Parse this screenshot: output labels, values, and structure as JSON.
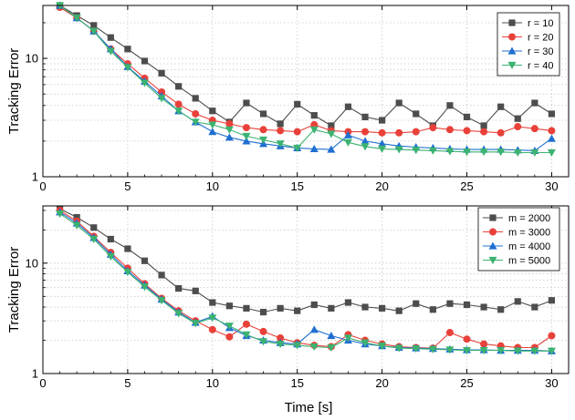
{
  "chart_data": [
    {
      "type": "line",
      "title": "",
      "ylabel": "Tracking Error",
      "xlabel": "",
      "yscale": "log",
      "xlim": [
        0,
        31
      ],
      "ylim": [
        1,
        28
      ],
      "xticks": [
        "0",
        "5",
        "10",
        "15",
        "20",
        "25",
        "30"
      ],
      "yticks": [
        "1",
        "10"
      ],
      "grid": "dotted",
      "legend_position": "top-right",
      "x": [
        1,
        2,
        3,
        4,
        5,
        6,
        7,
        8,
        9,
        10,
        11,
        12,
        13,
        14,
        15,
        16,
        17,
        18,
        19,
        20,
        21,
        22,
        23,
        24,
        25,
        26,
        27,
        28,
        29,
        30
      ],
      "series": [
        {
          "name": "r = 10",
          "color": "#4d4d4d",
          "marker": "square",
          "values": [
            28,
            23,
            19,
            15,
            12,
            9.5,
            7.5,
            5.8,
            4.6,
            3.6,
            2.9,
            4.2,
            3.4,
            2.8,
            4.1,
            3.3,
            2.7,
            3.9,
            3.2,
            3.0,
            4.2,
            3.4,
            2.7,
            4.0,
            3.2,
            2.7,
            3.9,
            3.1,
            4.2,
            3.4
          ]
        },
        {
          "name": "r = 20",
          "color": "#e8413a",
          "marker": "circle",
          "values": [
            27,
            22,
            17,
            12,
            9.0,
            6.8,
            5.2,
            4.1,
            3.4,
            3.0,
            2.8,
            2.6,
            2.5,
            2.45,
            2.4,
            2.75,
            2.45,
            2.4,
            2.4,
            2.35,
            2.35,
            2.4,
            2.6,
            2.5,
            2.45,
            2.4,
            2.35,
            2.65,
            2.55,
            2.45
          ]
        },
        {
          "name": "r = 30",
          "color": "#1f6fd1",
          "marker": "triangle-up",
          "values": [
            28,
            22,
            17,
            12,
            8.5,
            6.4,
            4.8,
            3.6,
            2.9,
            2.4,
            2.15,
            2.0,
            1.9,
            1.82,
            1.75,
            1.72,
            1.7,
            2.25,
            2.0,
            1.9,
            1.82,
            1.78,
            1.75,
            1.72,
            1.7,
            1.7,
            1.7,
            1.68,
            1.66,
            2.1
          ]
        },
        {
          "name": "r = 40",
          "color": "#3cb371",
          "marker": "triangle-down",
          "values": [
            28,
            22,
            17,
            11.5,
            8.4,
            6.2,
            4.6,
            3.6,
            2.9,
            2.75,
            2.5,
            2.2,
            2.05,
            1.9,
            1.75,
            2.5,
            2.3,
            1.95,
            1.8,
            1.72,
            1.7,
            1.68,
            1.66,
            1.64,
            1.62,
            1.62,
            1.62,
            1.6,
            1.6,
            1.6
          ]
        }
      ]
    },
    {
      "type": "line",
      "title": "",
      "ylabel": "Tracking Error",
      "xlabel": "Time [s]",
      "yscale": "log",
      "xlim": [
        0,
        31
      ],
      "ylim": [
        1,
        33
      ],
      "xticks": [
        "0",
        "5",
        "10",
        "15",
        "20",
        "25",
        "30"
      ],
      "yticks": [
        "1",
        "10"
      ],
      "grid": "dotted",
      "legend_position": "top-right",
      "x": [
        1,
        2,
        3,
        4,
        5,
        6,
        7,
        8,
        9,
        10,
        11,
        12,
        13,
        14,
        15,
        16,
        17,
        18,
        19,
        20,
        21,
        22,
        23,
        24,
        25,
        26,
        27,
        28,
        29,
        30
      ],
      "series": [
        {
          "name": "m = 2000",
          "color": "#4d4d4d",
          "marker": "square",
          "values": [
            31,
            26,
            21,
            16.5,
            13.5,
            10.5,
            7.8,
            5.9,
            5.6,
            4.4,
            4.1,
            3.9,
            3.6,
            3.9,
            3.7,
            4.2,
            3.9,
            4.4,
            4.0,
            3.9,
            3.7,
            4.3,
            3.8,
            4.3,
            4.2,
            4.0,
            3.8,
            4.5,
            4.0,
            4.6
          ]
        },
        {
          "name": "m = 3000",
          "color": "#e8413a",
          "marker": "circle",
          "values": [
            30,
            24,
            17.5,
            12.5,
            9.0,
            6.5,
            4.8,
            3.7,
            3.0,
            2.5,
            2.15,
            2.8,
            2.4,
            2.1,
            1.9,
            1.8,
            1.75,
            2.25,
            2.0,
            1.85,
            1.75,
            1.72,
            1.7,
            2.35,
            2.05,
            1.85,
            1.78,
            1.72,
            1.72,
            2.2
          ]
        },
        {
          "name": "m = 4000",
          "color": "#1f6fd1",
          "marker": "triangle-up",
          "values": [
            29,
            23,
            17,
            12,
            8.5,
            6.3,
            4.7,
            3.6,
            2.9,
            3.3,
            2.6,
            2.2,
            2.0,
            1.9,
            1.85,
            2.5,
            2.2,
            2.0,
            1.85,
            1.78,
            1.72,
            1.7,
            1.68,
            1.66,
            1.64,
            1.64,
            1.62,
            1.62,
            1.62,
            1.6
          ]
        },
        {
          "name": "m = 5000",
          "color": "#3cb371",
          "marker": "triangle-down",
          "values": [
            28,
            22,
            16.5,
            11.5,
            8.3,
            6.1,
            4.6,
            3.5,
            2.85,
            3.2,
            2.7,
            2.25,
            1.95,
            1.85,
            1.8,
            1.75,
            1.72,
            2.1,
            1.9,
            1.78,
            1.7,
            1.68,
            1.66,
            1.64,
            1.62,
            1.62,
            1.62,
            1.6,
            1.6,
            1.6
          ]
        }
      ]
    }
  ]
}
